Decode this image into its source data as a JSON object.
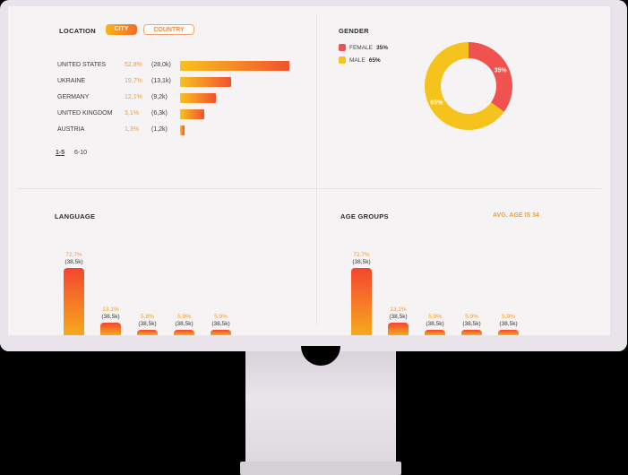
{
  "location": {
    "title": "LOCATION",
    "tabs": {
      "city": "CITY",
      "country": "COUNTRY"
    },
    "rows": [
      {
        "country": "UNITED STATES",
        "pct": "52,8%",
        "count": "(28,0k)",
        "value": 28.0
      },
      {
        "country": "UKRAINE",
        "pct": "19,7%",
        "count": "(13,1k)",
        "value": 13.1
      },
      {
        "country": "GERMANY",
        "pct": "12,1%",
        "count": "(9,2k)",
        "value": 9.2
      },
      {
        "country": "UNITED KINGDOM",
        "pct": "3,1%",
        "count": "(6,3k)",
        "value": 6.3
      },
      {
        "country": "AUSTRIA",
        "pct": "1,3%",
        "count": "(1,2k)",
        "value": 1.2
      }
    ],
    "pager": {
      "first": "1-5",
      "second": "6-10"
    }
  },
  "gender": {
    "title": "GENDER",
    "items": [
      {
        "label": "FEMALE",
        "pct": "35%",
        "value": 35,
        "color": "#f0524f"
      },
      {
        "label": "MALE",
        "pct": "65%",
        "value": 65,
        "color": "#f6c21c"
      }
    ]
  },
  "language": {
    "title": "LANGUAGE",
    "bars": [
      {
        "pct": "72,7%",
        "count": "(38,5k)",
        "value": 72.7
      },
      {
        "pct": "13,1%",
        "count": "(38,5k)",
        "value": 13.1
      },
      {
        "pct": "5,8%",
        "count": "(38,5k)",
        "value": 5.8
      },
      {
        "pct": "5,9%",
        "count": "(38,5k)",
        "value": 5.9
      },
      {
        "pct": "5,9%",
        "count": "(38,5k)",
        "value": 5.9
      }
    ]
  },
  "age_groups": {
    "title": "AGE GROUPS",
    "avg": "AVG. AGE IS 34",
    "bars": [
      {
        "pct": "72,7%",
        "count": "(38,5k)",
        "value": 72.7
      },
      {
        "pct": "13,1%",
        "count": "(38,5k)",
        "value": 13.1
      },
      {
        "pct": "5,9%",
        "count": "(38,5k)",
        "value": 5.9
      },
      {
        "pct": "5,9%",
        "count": "(38,5k)",
        "value": 5.9
      },
      {
        "pct": "5,9%",
        "count": "(38,5k)",
        "value": 5.9
      }
    ]
  },
  "colors": {
    "accent": "#f29d25",
    "bar_start": "#f8c21f",
    "bar_end": "#f2522e"
  }
}
